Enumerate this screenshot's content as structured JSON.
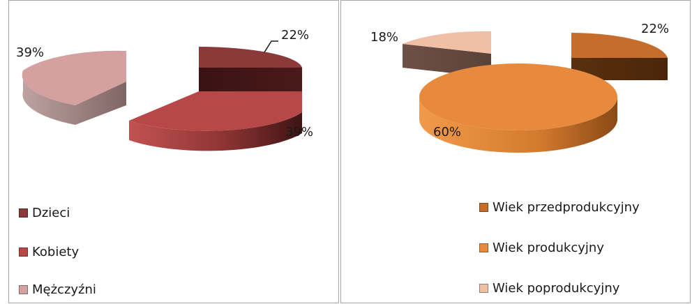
{
  "chart_data": [
    {
      "type": "pie",
      "slices": [
        {
          "label": "Dzieci",
          "value": 22,
          "value_label": "22%",
          "color": "#8b3a3a"
        },
        {
          "label": "Kobiety",
          "value": 39,
          "value_label": "39%",
          "color": "#b84848"
        },
        {
          "label": "Mężczyźni",
          "value": 39,
          "value_label": "39%",
          "color": "#d5a0a0"
        }
      ],
      "legend_position": "bottom-left"
    },
    {
      "type": "pie",
      "slices": [
        {
          "label": "Wiek przedprodukcyjny",
          "value": 22,
          "value_label": "22%",
          "color": "#c46d2c"
        },
        {
          "label": "Wiek produkcyjny",
          "value": 60,
          "value_label": "60%",
          "color": "#e88a3e"
        },
        {
          "label": "Wiek poprodukcyjny",
          "value": 18,
          "value_label": "18%",
          "color": "#efbfa6"
        }
      ],
      "legend_position": "bottom-right"
    }
  ]
}
